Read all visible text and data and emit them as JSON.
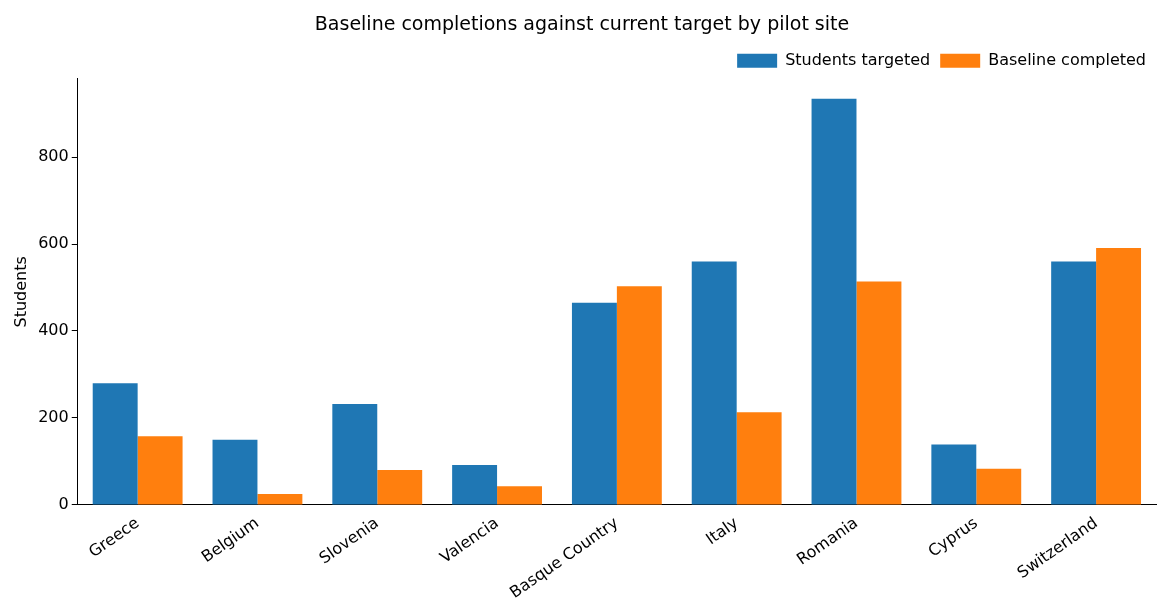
{
  "chart_data": {
    "type": "bar",
    "title": "Baseline completions against current target by pilot site",
    "ylabel": "Students",
    "categories": [
      "Greece",
      "Belgium",
      "Slovenia",
      "Valencia",
      "Basque Country",
      "Italy",
      "Romania",
      "Cyprus",
      "Switzerland"
    ],
    "series": [
      {
        "name": "Students targeted",
        "color": "#1f77b4",
        "values": [
          280,
          150,
          232,
          92,
          465,
          560,
          934,
          139,
          560
        ]
      },
      {
        "name": "Baseline completed",
        "color": "#ff7f0e",
        "values": [
          158,
          25,
          80,
          43,
          503,
          213,
          514,
          83,
          591
        ]
      }
    ],
    "ylim": [
      0,
      980
    ],
    "yticks": [
      0,
      200,
      400,
      600,
      800
    ],
    "grid": false,
    "legend": "top right"
  }
}
